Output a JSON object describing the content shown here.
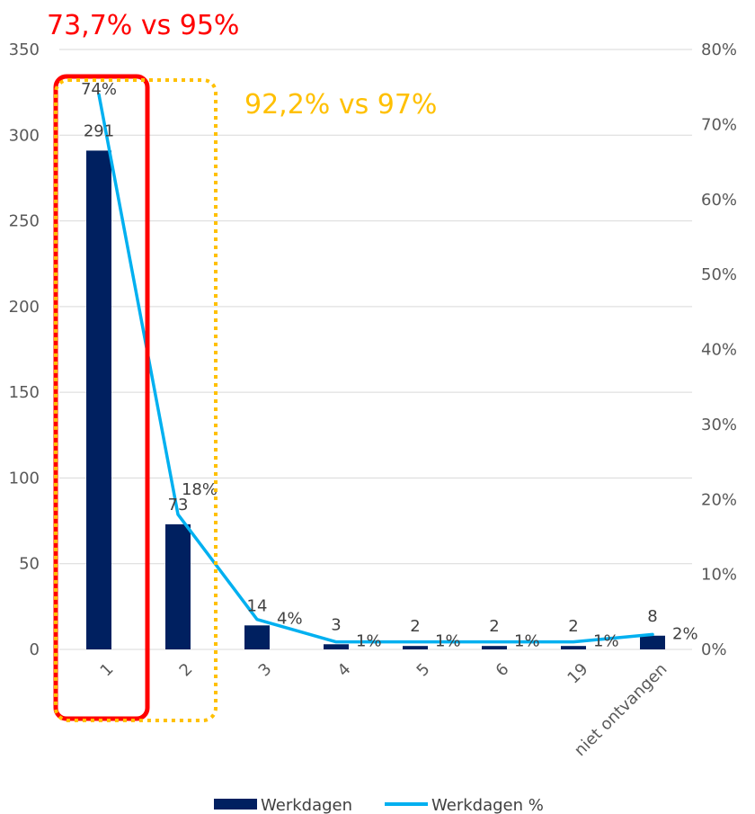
{
  "chart_data": {
    "type": "bar",
    "categories": [
      "1",
      "2",
      "3",
      "4",
      "5",
      "6",
      "19",
      "niet ontvangen"
    ],
    "series": [
      {
        "name": "Werkdagen",
        "type": "bar",
        "axis": "left",
        "values": [
          291,
          73,
          14,
          3,
          2,
          2,
          2,
          8
        ],
        "labels": [
          "291",
          "73",
          "14",
          "3",
          "2",
          "2",
          "2",
          "8"
        ]
      },
      {
        "name": "Werkdagen %",
        "type": "line",
        "axis": "right",
        "values": [
          74,
          18,
          4,
          1,
          1,
          1,
          1,
          2
        ],
        "labels": [
          "74%",
          "18%",
          "4%",
          "1%",
          "1%",
          "1%",
          "1%",
          "2%"
        ]
      }
    ],
    "y_left": {
      "ylim": [
        0,
        350
      ],
      "ticks": [
        "0",
        "50",
        "100",
        "150",
        "200",
        "250",
        "300",
        "350"
      ]
    },
    "y_right": {
      "ylim": [
        0,
        80
      ],
      "ticks": [
        "0%",
        "10%",
        "20%",
        "30%",
        "40%",
        "50%",
        "60%",
        "70%",
        "80%"
      ]
    },
    "annotations": [
      {
        "text": "73,7% vs 95%",
        "color": "#ff0000",
        "box_style": "solid",
        "covers_categories": [
          "1"
        ]
      },
      {
        "text": "92,2% vs 97%",
        "color": "#ffc000",
        "box_style": "dotted",
        "covers_categories": [
          "1",
          "2"
        ]
      }
    ],
    "grid": true,
    "legend": "bottom",
    "colors": {
      "bar": "#002060",
      "line": "#00b0f0",
      "grid": "#d9d9d9"
    }
  }
}
